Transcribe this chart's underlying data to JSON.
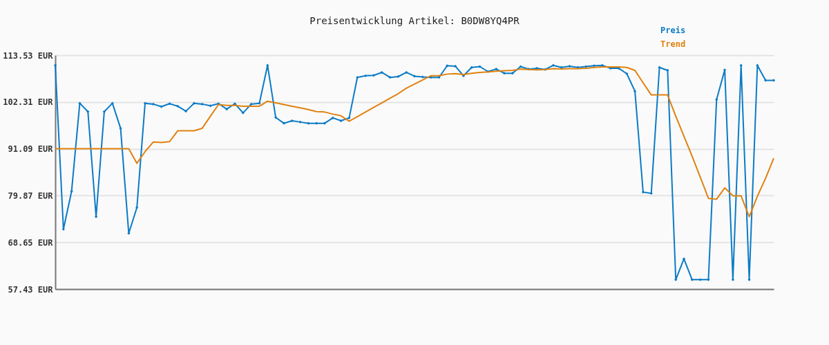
{
  "chart_data": {
    "type": "line",
    "title": "Preisentwicklung Artikel: B0DW8YQ4PR",
    "categories": [
      null,
      null,
      null,
      null,
      null,
      null,
      null,
      null,
      null,
      null,
      null,
      null,
      null,
      null,
      null,
      null,
      null,
      null,
      null,
      null,
      null,
      null,
      null,
      null,
      null,
      null,
      null,
      null,
      null,
      null,
      null,
      null,
      null,
      null,
      null,
      null,
      null,
      null,
      null,
      null,
      null,
      null,
      null,
      null,
      null,
      null,
      null,
      null,
      null,
      null,
      null,
      null,
      null,
      null,
      null,
      null,
      null,
      null,
      null,
      null,
      null,
      null,
      null,
      null,
      null,
      null,
      null,
      null,
      null,
      null,
      null,
      null,
      null,
      null,
      null,
      null,
      null,
      null,
      null,
      null,
      null,
      null,
      null,
      null,
      null,
      null,
      null,
      null,
      null
    ],
    "series": [
      {
        "name": "Preis",
        "color": "#0a7bc6",
        "marker": "diamond",
        "values": [
          111.1,
          71.8,
          80.9,
          102,
          100,
          74.8,
          100,
          102,
          96,
          70.8,
          77,
          102,
          101.8,
          101.2,
          101.9,
          101.3,
          100.1,
          102,
          101.8,
          101.4,
          101.9,
          100.6,
          101.9,
          99.7,
          101.8,
          102,
          111.1,
          98.6,
          97.2,
          97.8,
          97.5,
          97.2,
          97.2,
          97.2,
          98.5,
          97.8,
          98.5,
          108.2,
          108.6,
          108.7,
          109.4,
          108.2,
          108.4,
          109.4,
          108.5,
          108.3,
          108.2,
          108.2,
          111,
          110.9,
          108.6,
          110.6,
          110.8,
          109.6,
          110.2,
          109.2,
          109.2,
          110.8,
          110.2,
          110.4,
          110.1,
          111.1,
          110.6,
          110.9,
          110.6,
          110.8,
          111,
          111.1,
          110.4,
          110.4,
          109.1,
          104.9,
          80.7,
          80.4,
          110.6,
          109.9,
          59.7,
          64.7,
          59.7,
          59.7,
          59.7,
          102.9,
          110,
          59.7,
          111.1,
          59.7,
          111.1,
          107.5,
          107.5
        ]
      },
      {
        "name": "Trend",
        "color": "#e0810f",
        "marker": "none",
        "values": [
          91.1,
          91.1,
          91.1,
          91.1,
          91.1,
          91.1,
          91.1,
          91.1,
          91.1,
          91.1,
          87.6,
          90.4,
          92.7,
          92.6,
          92.8,
          95.4,
          95.4,
          95.4,
          96,
          98.9,
          101.7,
          101.5,
          101.5,
          101.3,
          101.3,
          101.3,
          102.5,
          102.1,
          101.7,
          101.3,
          100.9,
          100.5,
          100,
          99.9,
          99.4,
          99,
          97.7,
          98.8,
          99.9,
          101,
          102.1,
          103.2,
          104.3,
          105.6,
          106.6,
          107.6,
          108.6,
          108.6,
          109,
          109.1,
          108.9,
          109.2,
          109.4,
          109.5,
          109.7,
          109.8,
          109.9,
          110.2,
          110.1,
          110,
          110.1,
          110.3,
          110.2,
          110.3,
          110.3,
          110.4,
          110.6,
          110.7,
          110.7,
          110.7,
          110.6,
          109.9,
          106.9,
          104,
          104,
          104,
          98.9,
          94.1,
          89.3,
          84.3,
          79.2,
          79,
          81.7,
          79.8,
          79.8,
          74.8,
          79.7,
          84,
          88.8
        ]
      }
    ],
    "ylim": [
      57.43,
      113.53
    ],
    "yticks": [
      {
        "value": 57.43,
        "label": "57.43 EUR"
      },
      {
        "value": 68.65,
        "label": "68.65 EUR"
      },
      {
        "value": 79.87,
        "label": "79.87 EUR"
      },
      {
        "value": 91.09,
        "label": "91.09 EUR"
      },
      {
        "value": 102.31,
        "label": "102.31 EUR"
      },
      {
        "value": 113.53,
        "label": "113.53 EUR"
      }
    ],
    "grid": "y",
    "legend": "top right",
    "tick_labels": "y",
    "line_style": "solid"
  }
}
